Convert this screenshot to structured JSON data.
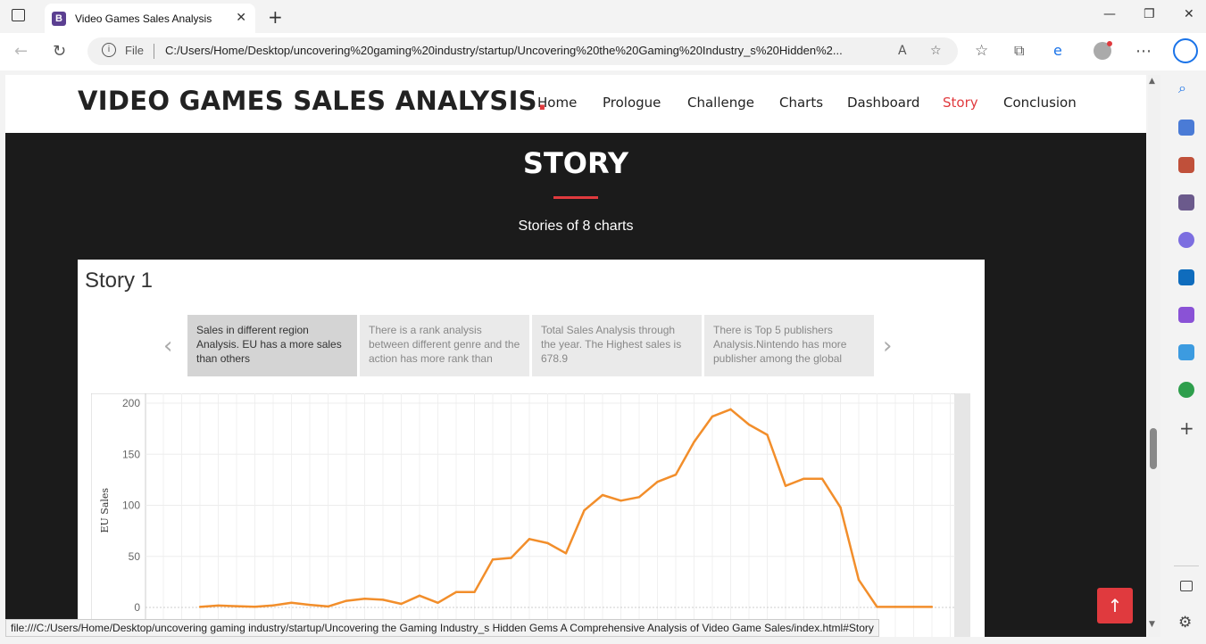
{
  "browser": {
    "tab_title": "Video Games Sales Analysis",
    "tab_favicon_letter": "B",
    "url_scheme_label": "File",
    "url": "C:/Users/Home/Desktop/uncovering%20gaming%20industry/startup/Uncovering%20the%20Gaming%20Industry_s%20Hidden%2...",
    "status_url": "file:///C:/Users/Home/Desktop/uncovering gaming industry/startup/Uncovering the Gaming Industry_s Hidden Gems A Comprehensive Analysis of Video Game Sales/index.html#Story"
  },
  "site": {
    "logo_text": "VIDEO GAMES SALES ANALYSIS",
    "logo_dot": ".",
    "accent_color": "#e03a3e",
    "menu": [
      "Home",
      "Prologue",
      "Challenge",
      "Charts",
      "Dashboard",
      "Story",
      "Conclusion"
    ],
    "active_menu": "Story"
  },
  "section": {
    "title": "STORY",
    "subtitle": "Stories of 8 charts"
  },
  "story": {
    "title": "Story 1",
    "points": [
      " Sales in different region Analysis. EU has a more sales than others",
      "There is a rank analysis between different genre and the action has more rank than",
      "Total Sales Analysis through the year. The Highest sales is 678.9",
      "There is Top 5 publishers Analysis.Nintendo has more publisher among the global"
    ],
    "active_point": 0
  },
  "chart_data": {
    "type": "line",
    "ylabel": "EU Sales",
    "ylim": [
      0,
      200
    ],
    "yticks": [
      0,
      50,
      100,
      150,
      200
    ],
    "series": [
      {
        "color": "#f28e2b",
        "values": [
          0.5,
          1.8,
          1.2,
          0.6,
          2,
          4.5,
          2.5,
          1,
          6.5,
          8.5,
          7.5,
          3.5,
          11.5,
          4.5,
          15,
          15,
          47,
          48.5,
          67,
          63,
          53,
          95,
          110,
          104.5,
          108,
          123,
          130,
          162,
          187,
          194,
          179,
          169,
          119,
          126,
          126,
          98,
          27,
          0.5,
          0.5,
          0.5,
          0.5
        ]
      }
    ]
  }
}
